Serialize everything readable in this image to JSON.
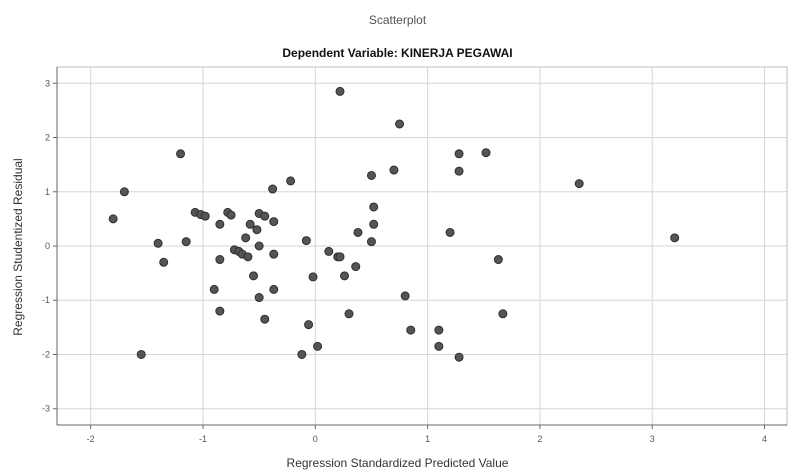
{
  "window_caption": "Scatterplot",
  "chart_data": {
    "type": "scatter",
    "title": "Dependent Variable: KINERJA PEGAWAI",
    "xlabel": "Regression Standardized Predicted Value",
    "ylabel": "Regression Studentized Residual",
    "xlim": [
      -2.3,
      4.2
    ],
    "ylim": [
      -3.3,
      3.3
    ],
    "x_ticks": [
      -2,
      -1,
      0,
      1,
      2,
      3,
      4
    ],
    "y_ticks": [
      -3,
      -2,
      -1,
      0,
      1,
      2,
      3
    ],
    "grid": true,
    "marker_color": "#555555",
    "points": [
      {
        "x": -1.8,
        "y": 0.5
      },
      {
        "x": -1.7,
        "y": 1.0
      },
      {
        "x": -1.55,
        "y": -2.0
      },
      {
        "x": -1.4,
        "y": 0.05
      },
      {
        "x": -1.35,
        "y": -0.3
      },
      {
        "x": -1.2,
        "y": 1.7
      },
      {
        "x": -1.15,
        "y": 0.08
      },
      {
        "x": -1.07,
        "y": 0.62
      },
      {
        "x": -1.02,
        "y": 0.58
      },
      {
        "x": -0.98,
        "y": 0.55
      },
      {
        "x": -0.9,
        "y": -0.8
      },
      {
        "x": -0.85,
        "y": -0.25
      },
      {
        "x": -0.85,
        "y": -1.2
      },
      {
        "x": -0.85,
        "y": 0.4
      },
      {
        "x": -0.78,
        "y": 0.62
      },
      {
        "x": -0.75,
        "y": 0.57
      },
      {
        "x": -0.72,
        "y": -0.07
      },
      {
        "x": -0.68,
        "y": -0.1
      },
      {
        "x": -0.65,
        "y": -0.15
      },
      {
        "x": -0.62,
        "y": 0.15
      },
      {
        "x": -0.6,
        "y": -0.2
      },
      {
        "x": -0.58,
        "y": 0.4
      },
      {
        "x": -0.55,
        "y": -0.55
      },
      {
        "x": -0.52,
        "y": 0.3
      },
      {
        "x": -0.5,
        "y": 0.6
      },
      {
        "x": -0.5,
        "y": 0.0
      },
      {
        "x": -0.5,
        "y": -0.95
      },
      {
        "x": -0.45,
        "y": 0.55
      },
      {
        "x": -0.45,
        "y": -1.35
      },
      {
        "x": -0.38,
        "y": 1.05
      },
      {
        "x": -0.37,
        "y": 0.45
      },
      {
        "x": -0.37,
        "y": -0.15
      },
      {
        "x": -0.37,
        "y": -0.8
      },
      {
        "x": -0.22,
        "y": 1.2
      },
      {
        "x": -0.12,
        "y": -2.0
      },
      {
        "x": -0.08,
        "y": 0.1
      },
      {
        "x": -0.06,
        "y": -1.45
      },
      {
        "x": -0.02,
        "y": -0.57
      },
      {
        "x": 0.02,
        "y": -1.85
      },
      {
        "x": 0.12,
        "y": -0.1
      },
      {
        "x": 0.2,
        "y": -0.2
      },
      {
        "x": 0.22,
        "y": 2.85
      },
      {
        "x": 0.22,
        "y": -0.2
      },
      {
        "x": 0.26,
        "y": -0.55
      },
      {
        "x": 0.3,
        "y": -1.25
      },
      {
        "x": 0.36,
        "y": -0.38
      },
      {
        "x": 0.38,
        "y": 0.25
      },
      {
        "x": 0.5,
        "y": 1.3
      },
      {
        "x": 0.5,
        "y": 0.08
      },
      {
        "x": 0.52,
        "y": 0.72
      },
      {
        "x": 0.52,
        "y": 0.4
      },
      {
        "x": 0.7,
        "y": 1.4
      },
      {
        "x": 0.75,
        "y": 2.25
      },
      {
        "x": 0.8,
        "y": -0.92
      },
      {
        "x": 0.85,
        "y": -1.55
      },
      {
        "x": 1.1,
        "y": -1.55
      },
      {
        "x": 1.1,
        "y": -1.85
      },
      {
        "x": 1.2,
        "y": 0.25
      },
      {
        "x": 1.28,
        "y": 1.7
      },
      {
        "x": 1.28,
        "y": 1.38
      },
      {
        "x": 1.28,
        "y": -2.05
      },
      {
        "x": 1.52,
        "y": 1.72
      },
      {
        "x": 1.63,
        "y": -0.25
      },
      {
        "x": 1.67,
        "y": -1.25
      },
      {
        "x": 2.35,
        "y": 1.15
      },
      {
        "x": 3.2,
        "y": 0.15
      }
    ]
  }
}
